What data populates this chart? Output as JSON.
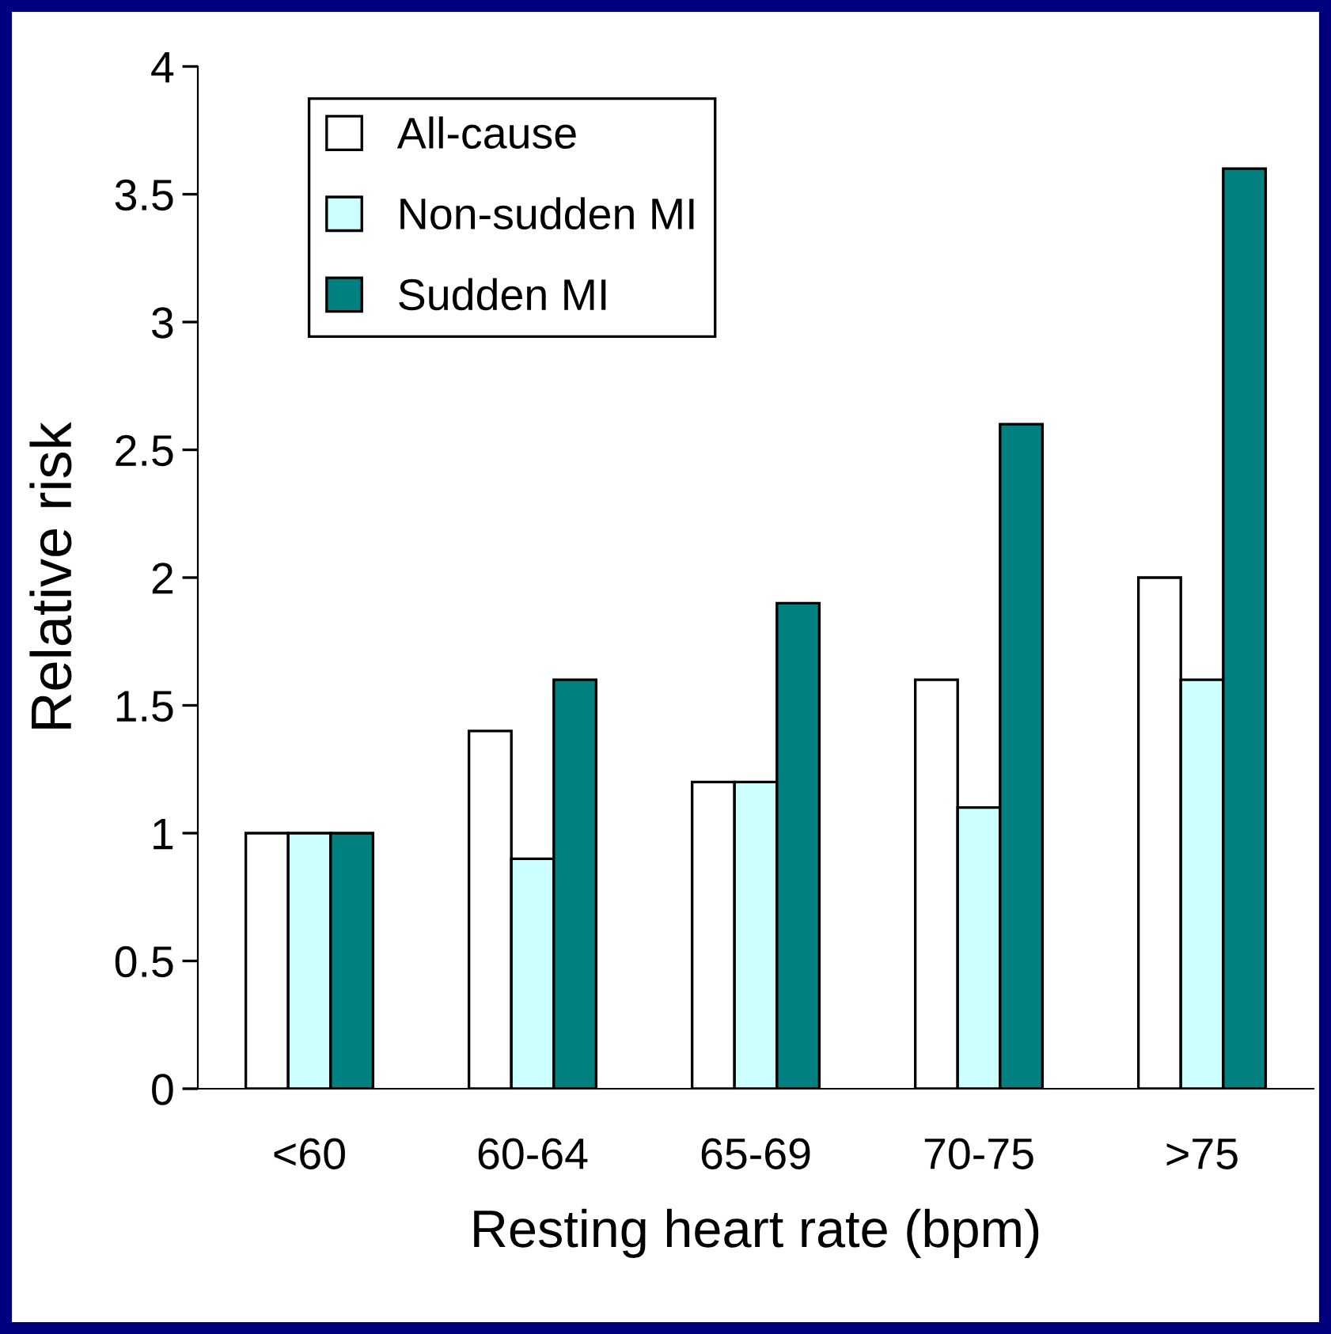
{
  "chart_data": {
    "type": "bar",
    "xlabel": "Resting heart rate (bpm)",
    "ylabel": "Relative risk",
    "categories": [
      "<60",
      "60-64",
      "65-69",
      "70-75",
      ">75"
    ],
    "series": [
      {
        "name": "All-cause",
        "color": "#ffffff",
        "values": [
          1,
          1.4,
          1.2,
          1.6,
          2.0
        ]
      },
      {
        "name": "Non-sudden MI",
        "color": "#ccffff",
        "values": [
          1,
          0.9,
          1.2,
          1.1,
          1.6
        ]
      },
      {
        "name": "Sudden MI",
        "color": "#008080",
        "values": [
          1,
          1.6,
          1.9,
          2.6,
          3.6
        ]
      }
    ],
    "ylim": [
      0,
      4
    ],
    "yticks": [
      0,
      {
        "value": 0.5,
        "label": "0.5"
      },
      1,
      {
        "value": 1.5,
        "label": "1.5"
      },
      2,
      {
        "value": 2.5,
        "label": "2.5"
      },
      3,
      {
        "value": 3.5,
        "label": "3.5"
      },
      4
    ],
    "grid": false,
    "legend": "top left"
  }
}
